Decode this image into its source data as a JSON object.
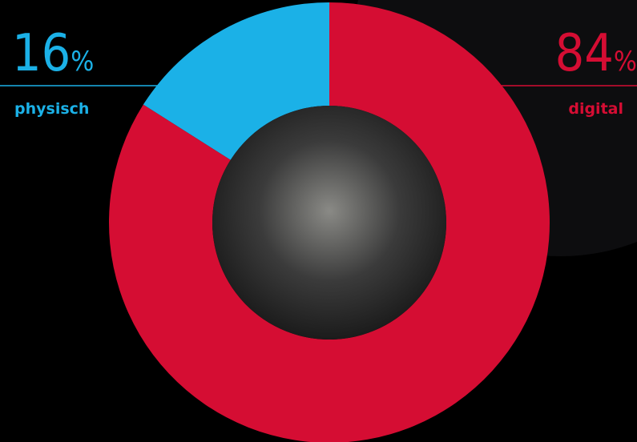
{
  "chart_data": {
    "type": "donut",
    "categories": [
      "physisch",
      "digital"
    ],
    "values": [
      16,
      84
    ],
    "value_labels": [
      "16%",
      "84%"
    ],
    "colors": [
      "#1bb1e7",
      "#d50d33"
    ]
  }
}
